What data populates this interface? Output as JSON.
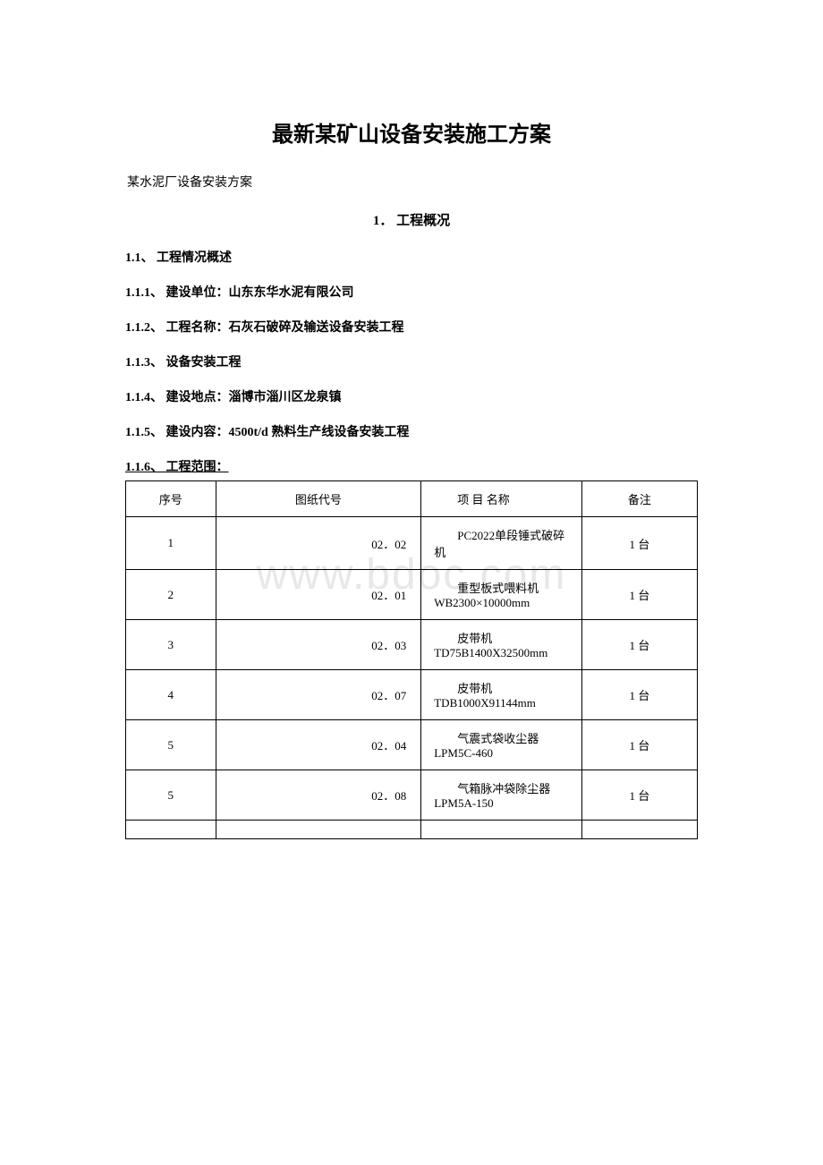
{
  "watermark": "www.bdoc.com",
  "title": "最新某矿山设备安装施工方案",
  "subtitle": "某水泥厂设备安装方案",
  "section": {
    "number": "1．",
    "title": "工程概况"
  },
  "items": {
    "i1_1": "1.1、 工程情况概述",
    "i1_1_1": "1.1.1、 建设单位：山东东华水泥有限公司",
    "i1_1_2": "1.1.2、 工程名称：石灰石破碎及输送设备安装工程",
    "i1_1_3": "1.1.3、 设备安装工程",
    "i1_1_4": "1.1.4、 建设地点：淄博市淄川区龙泉镇",
    "i1_1_5": "1.1.5、 建设内容：4500t/d 熟料生产线设备安装工程",
    "i1_1_6": "1.1.6、 工程范围："
  },
  "table": {
    "headers": {
      "seq": "序号",
      "code": "图纸代号",
      "name": "项 目 名称",
      "remark": "备注"
    },
    "rows": [
      {
        "seq": "1",
        "code": "02．02",
        "name": "PC2022单段锤式破碎机",
        "remark": "1 台"
      },
      {
        "seq": "2",
        "code": "02．01",
        "name": "重型板式喂料机WB2300×10000mm",
        "remark": "1 台"
      },
      {
        "seq": "3",
        "code": "02．03",
        "name": "皮带机TD75B1400X32500mm",
        "remark": "1 台"
      },
      {
        "seq": "4",
        "code": "02．07",
        "name": "皮带机TDB1000X91144mm",
        "remark": "1 台"
      },
      {
        "seq": "5",
        "code": "02．04",
        "name": "气震式袋收尘器LPM5C-460",
        "remark": "1 台"
      },
      {
        "seq": "5",
        "code": "02．08",
        "name": "气箱脉冲袋除尘器LPM5A-150",
        "remark": "1 台"
      }
    ]
  }
}
